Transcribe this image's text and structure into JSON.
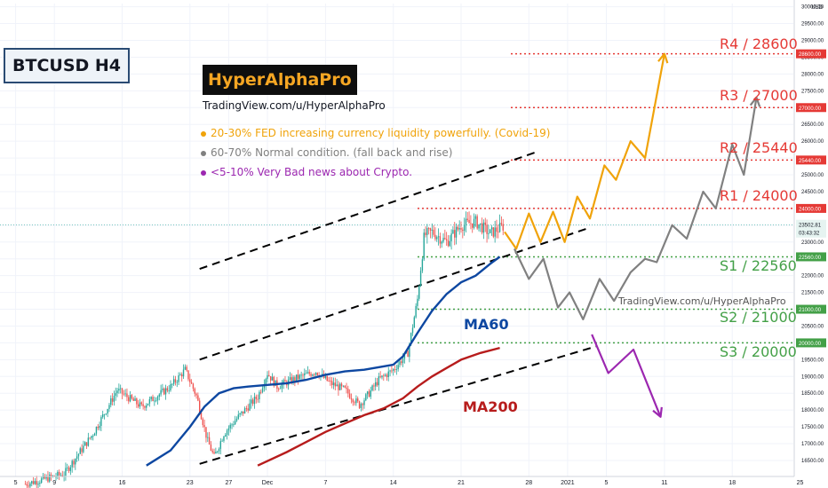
{
  "header": {
    "symbol": "BTCUSD H4",
    "brand": "HyperAlphaPro",
    "url": "TradingView.com/u/HyperAlphaPro",
    "url_mid": "TradingView.com/u/HyperAlphaPro"
  },
  "scenarios": [
    {
      "text": "20-30% FED increasing currency liquidity powerfully. (Covid-19)",
      "color": "#f0a30a"
    },
    {
      "text": "60-70% Normal condition. (fall back and rise)",
      "color": "#808080"
    },
    {
      "text": "<5-10% Very Bad news about Crypto.",
      "color": "#9c27b0"
    }
  ],
  "colors": {
    "up": "#26a69a",
    "down": "#ef5350",
    "ma60": "#0d47a1",
    "ma200": "#b71c1c",
    "resistance": "#e53935",
    "support": "#43a047",
    "orange": "#f0a30a",
    "gray": "#808080",
    "purple": "#9c27b0"
  },
  "chart_data": {
    "type": "line",
    "currency": "USD",
    "yaxis": {
      "range": [
        16200,
        30100
      ],
      "ticks": [
        16500,
        17000,
        17500,
        18000,
        18500,
        19000,
        19500,
        20000,
        20500,
        21000,
        21500,
        22000,
        22500,
        23000,
        23500,
        24000,
        24500,
        25000,
        25500,
        26000,
        26500,
        27000,
        27500,
        28000,
        28500,
        29000,
        29500,
        30000
      ]
    },
    "xaxis": {
      "ticks": [
        {
          "label": "5",
          "d": -26
        },
        {
          "label": "9",
          "d": -22
        },
        {
          "label": "16",
          "d": -15
        },
        {
          "label": "23",
          "d": -8
        },
        {
          "label": "27",
          "d": -4
        },
        {
          "label": "Dec",
          "d": 0
        },
        {
          "label": "7",
          "d": 6
        },
        {
          "label": "14",
          "d": 13
        },
        {
          "label": "21",
          "d": 20
        },
        {
          "label": "28",
          "d": 27
        },
        {
          "label": "2021",
          "d": 31
        },
        {
          "label": "5",
          "d": 35
        },
        {
          "label": "11",
          "d": 41
        },
        {
          "label": "18",
          "d": 48
        },
        {
          "label": "25",
          "d": 55
        }
      ]
    },
    "levels": [
      {
        "label": "R4 / 28600",
        "value": 28600,
        "kind": "resistance"
      },
      {
        "label": "R3 / 27000",
        "value": 27000,
        "kind": "resistance"
      },
      {
        "label": "R2 / 25440",
        "value": 25440,
        "kind": "resistance"
      },
      {
        "label": "R1 / 24000",
        "value": 24000,
        "kind": "resistance"
      },
      {
        "label": "S1 / 22560",
        "value": 22560,
        "kind": "support"
      },
      {
        "label": "S2 / 21000",
        "value": 21000,
        "kind": "support"
      },
      {
        "label": "S3 / 20000",
        "value": 20000,
        "kind": "support"
      }
    ],
    "last_price": {
      "value": 23502.81,
      "label": "23502.81",
      "countdown": "03:43:32"
    },
    "series": [
      {
        "name": "MA60",
        "points": [
          [
            -12.5,
            16350
          ],
          [
            -10,
            16800
          ],
          [
            -8,
            17500
          ],
          [
            -6.5,
            18100
          ],
          [
            -5,
            18500
          ],
          [
            -3.5,
            18650
          ],
          [
            -2,
            18700
          ],
          [
            0,
            18750
          ],
          [
            2,
            18800
          ],
          [
            4,
            18900
          ],
          [
            6,
            19050
          ],
          [
            8,
            19150
          ],
          [
            10,
            19200
          ],
          [
            12,
            19300
          ],
          [
            13,
            19350
          ],
          [
            14,
            19600
          ],
          [
            15.5,
            20300
          ],
          [
            17,
            20950
          ],
          [
            18.5,
            21450
          ],
          [
            20,
            21800
          ],
          [
            21.5,
            22000
          ],
          [
            23,
            22350
          ],
          [
            24,
            22560
          ]
        ]
      },
      {
        "name": "MA200",
        "points": [
          [
            -1,
            16350
          ],
          [
            2,
            16750
          ],
          [
            4,
            17050
          ],
          [
            6,
            17350
          ],
          [
            8,
            17600
          ],
          [
            10,
            17850
          ],
          [
            12,
            18050
          ],
          [
            14,
            18350
          ],
          [
            15.5,
            18700
          ],
          [
            17,
            19000
          ],
          [
            18.5,
            19250
          ],
          [
            20,
            19500
          ],
          [
            22,
            19700
          ],
          [
            24,
            19850
          ]
        ]
      }
    ],
    "channel_lines": [
      [
        [
          -7,
          22200
        ],
        [
          28,
          25700
        ]
      ],
      [
        [
          -7,
          19500
        ],
        [
          33,
          23400
        ]
      ],
      [
        [
          -7,
          16400
        ],
        [
          34,
          19900
        ]
      ]
    ],
    "projections": [
      {
        "scenario": "orange",
        "points": [
          [
            24.5,
            23300
          ],
          [
            25.7,
            22800
          ],
          [
            27,
            23850
          ],
          [
            28.2,
            23000
          ],
          [
            29.5,
            23900
          ],
          [
            30.7,
            23000
          ],
          [
            32,
            24350
          ],
          [
            33.3,
            23700
          ],
          [
            34.8,
            25280
          ],
          [
            36,
            24850
          ],
          [
            37.5,
            26000
          ],
          [
            39,
            25500
          ],
          [
            41,
            28600
          ]
        ]
      },
      {
        "scenario": "gray",
        "points": [
          [
            25.5,
            22800
          ],
          [
            27,
            21900
          ],
          [
            28.5,
            22500
          ],
          [
            30,
            21050
          ],
          [
            31.2,
            21500
          ],
          [
            32.6,
            20700
          ],
          [
            34.3,
            21900
          ],
          [
            35.8,
            21250
          ],
          [
            37.5,
            22100
          ],
          [
            39,
            22500
          ],
          [
            40.2,
            22400
          ],
          [
            41.8,
            23500
          ],
          [
            43.3,
            23100
          ],
          [
            45,
            24500
          ],
          [
            46.3,
            24000
          ],
          [
            48,
            25900
          ],
          [
            49.2,
            25000
          ],
          [
            50.5,
            27300
          ]
        ]
      },
      {
        "scenario": "purple",
        "points": [
          [
            33.5,
            20250
          ],
          [
            35.2,
            19100
          ],
          [
            37.8,
            19800
          ],
          [
            40.6,
            17800
          ]
        ]
      }
    ],
    "ohlc_4h_sample": {
      "d_range": [
        -25,
        24.5
      ],
      "path_anchors": [
        [
          -25,
          15800
        ],
        [
          -21,
          16100
        ],
        [
          -18,
          17300
        ],
        [
          -15.5,
          18600
        ],
        [
          -13,
          18100
        ],
        [
          -10,
          18700
        ],
        [
          -8.5,
          19200
        ],
        [
          -7.3,
          18400
        ],
        [
          -6.2,
          17100
        ],
        [
          -5.5,
          16600
        ],
        [
          -4.5,
          17300
        ],
        [
          -3,
          17800
        ],
        [
          -1,
          18400
        ],
        [
          0,
          19100
        ],
        [
          1,
          18700
        ],
        [
          3,
          18950
        ],
        [
          5,
          19150
        ],
        [
          6.5,
          18800
        ],
        [
          8,
          18600
        ],
        [
          9.5,
          18150
        ],
        [
          10.5,
          18500
        ],
        [
          11.5,
          18900
        ],
        [
          13,
          19200
        ],
        [
          14.5,
          19700
        ],
        [
          15.5,
          21300
        ],
        [
          16.2,
          23200
        ],
        [
          17,
          23300
        ],
        [
          18.5,
          23000
        ],
        [
          20,
          23500
        ],
        [
          21.5,
          23600
        ],
        [
          23,
          23250
        ],
        [
          24.5,
          23500
        ]
      ]
    }
  }
}
